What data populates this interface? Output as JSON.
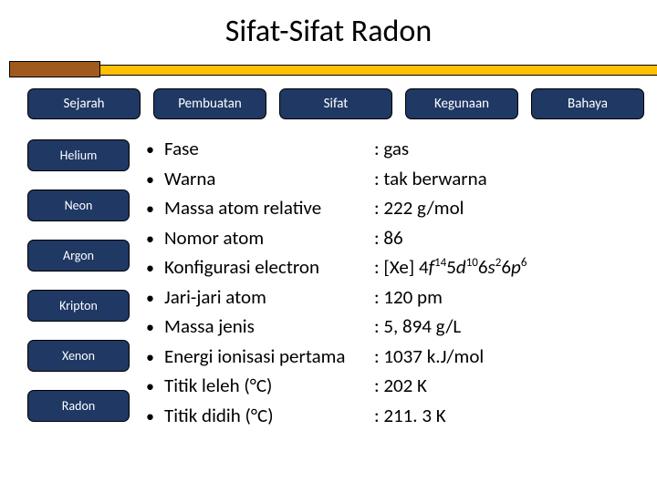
{
  "title": "Sifat-Sifat Radon",
  "band": {
    "orange_color": "#a05a1e",
    "yellow_color": "#ffc000"
  },
  "tabs": [
    {
      "label": "Sejarah"
    },
    {
      "label": "Pembuatan"
    },
    {
      "label": "Sifat"
    },
    {
      "label": "Kegunaan"
    },
    {
      "label": "Bahaya"
    }
  ],
  "sidebar": [
    {
      "label": "Helium"
    },
    {
      "label": "Neon"
    },
    {
      "label": "Argon"
    },
    {
      "label": "Kripton"
    },
    {
      "label": "Xenon"
    },
    {
      "label": "Radon"
    }
  ],
  "properties": [
    {
      "name": "Fase",
      "value": "gas"
    },
    {
      "name": "Warna",
      "value": "tak berwarna"
    },
    {
      "name": "Massa atom relative",
      "value": "222 g/mol"
    },
    {
      "name": "Nomor atom",
      "value": "86"
    },
    {
      "name": "Konfigurasi electron",
      "value_html": "[Xe] 4<em class='it'>f</em><sup>14</sup>5<em class='it'>d</em><sup>10</sup>6<em class='it'>s</em><sup>2</sup>6<em class='it'>p</em><sup>6</sup>"
    },
    {
      "name": "Jari-jari atom",
      "value": "120 pm"
    },
    {
      "name": "Massa jenis",
      "value": "5, 894 g/L"
    },
    {
      "name": "Energi ionisasi pertama",
      "value": "1037 k.J/mol"
    },
    {
      "name": "Titik leleh (°C)",
      "value": "202 K"
    },
    {
      "name": "Titik didih (°C)",
      "value": "211. 3 K"
    }
  ],
  "colors": {
    "tab_bg": "#1f3864",
    "tab_fg": "#ffffff",
    "text": "#000000",
    "page_bg": "#ffffff"
  }
}
